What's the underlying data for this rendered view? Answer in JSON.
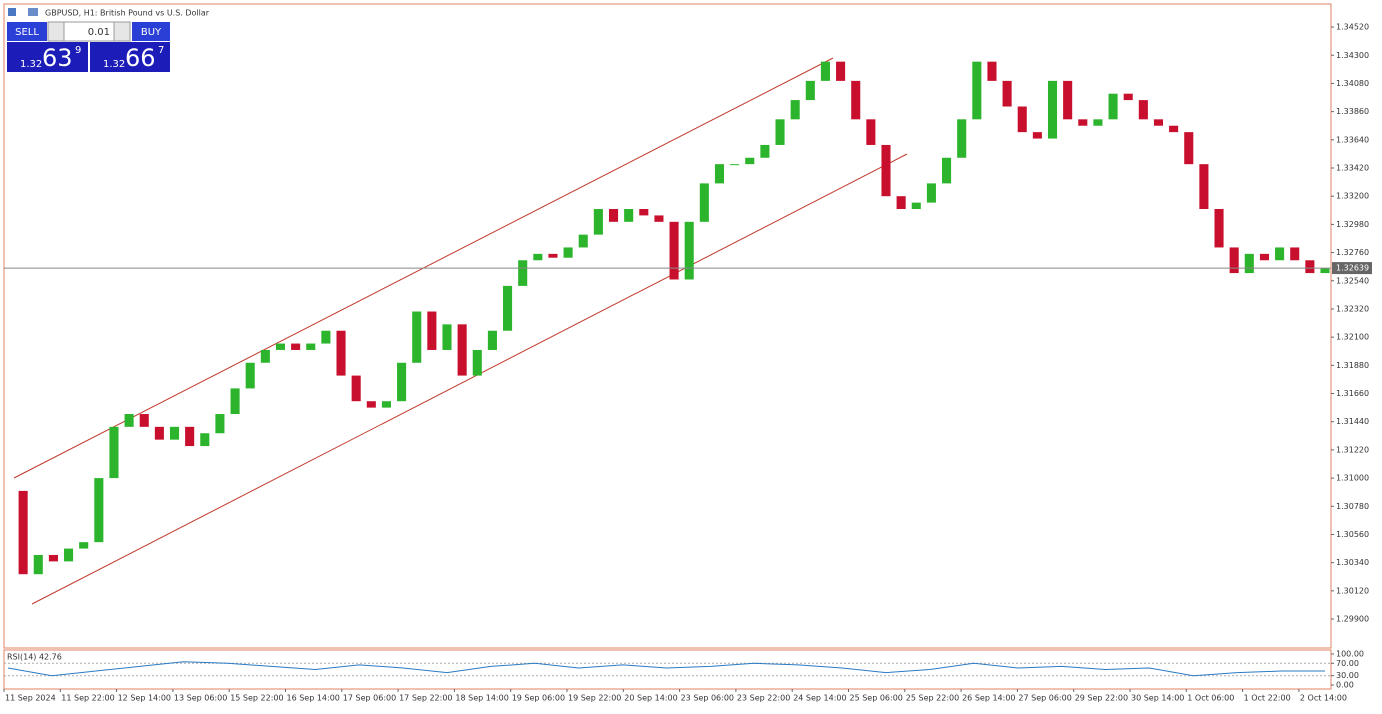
{
  "header": {
    "title": "GBPUSD, H1:  British Pound vs U.S. Dollar"
  },
  "trade_panel": {
    "sell": "SELL",
    "buy": "BUY",
    "lot": "0.01",
    "sell_price": {
      "big": "1.32",
      "pips": "63",
      "point": "9"
    },
    "buy_price": {
      "big": "1.32",
      "pips": "66",
      "point": "7"
    }
  },
  "x_labels": [
    "11 Sep 2024",
    "11 Sep 22:00",
    "12 Sep 14:00",
    "13 Sep 06:00",
    "15 Sep 22:00",
    "16 Sep 14:00",
    "17 Sep 06:00",
    "17 Sep 22:00",
    "18 Sep 14:00",
    "19 Sep 06:00",
    "19 Sep 22:00",
    "20 Sep 14:00",
    "23 Sep 06:00",
    "23 Sep 22:00",
    "24 Sep 14:00",
    "25 Sep 06:00",
    "25 Sep 22:00",
    "26 Sep 14:00",
    "27 Sep 06:00",
    "29 Sep 22:00",
    "30 Sep 14:00",
    "1 Oct 06:00",
    "1 Oct 22:00",
    "2 Oct 14:00"
  ],
  "chart_data": [
    {
      "type": "candlestick",
      "up_color": "#2cb52c",
      "down_color": "#c8102e",
      "values": [
        1.309,
        1.3025,
        1.304,
        1.3035,
        1.3045,
        1.305,
        1.31,
        1.314,
        1.315,
        1.314,
        1.313,
        1.314,
        1.3125,
        1.3135,
        1.315,
        1.317,
        1.319,
        1.32,
        1.3205,
        1.32,
        1.3205,
        1.3215,
        1.318,
        1.316,
        1.3155,
        1.316,
        1.319,
        1.323,
        1.32,
        1.322,
        1.318,
        1.32,
        1.3215,
        1.325,
        1.327,
        1.3275,
        1.3272,
        1.328,
        1.329,
        1.331,
        1.33,
        1.331,
        1.3305,
        1.33,
        1.3255,
        1.33,
        1.333,
        1.3345,
        1.3345,
        1.335,
        1.336,
        1.338,
        1.3395,
        1.341,
        1.3425,
        1.341,
        1.338,
        1.336,
        1.332,
        1.331,
        1.3315,
        1.333,
        1.335,
        1.338,
        1.3425,
        1.341,
        1.339,
        1.337,
        1.3365,
        1.341,
        1.338,
        1.3375,
        1.338,
        1.34,
        1.3395,
        1.338,
        1.3375,
        1.337,
        1.3345,
        1.331,
        1.328,
        1.326,
        1.3275,
        1.327,
        1.328,
        1.327,
        1.326,
        1.3264
      ],
      "current_price": {
        "value": 1.32639,
        "label": "1.32639"
      },
      "ylim": [
        1.29674,
        1.347
      ],
      "yticks": [
        {
          "value": 1.3452,
          "label": "1.34520"
        },
        {
          "value": 1.343,
          "label": "1.34300"
        },
        {
          "value": 1.3408,
          "label": "1.34080"
        },
        {
          "value": 1.3386,
          "label": "1.33860"
        },
        {
          "value": 1.3364,
          "label": "1.33640"
        },
        {
          "value": 1.3342,
          "label": "1.33420"
        },
        {
          "value": 1.332,
          "label": "1.33200"
        },
        {
          "value": 1.3298,
          "label": "1.32980"
        },
        {
          "value": 1.3276,
          "label": "1.32760"
        },
        {
          "value": 1.3254,
          "label": "1.32540"
        },
        {
          "value": 1.3232,
          "label": "1.32320"
        },
        {
          "value": 1.321,
          "label": "1.32100"
        },
        {
          "value": 1.3188,
          "label": "1.31880"
        },
        {
          "value": 1.3166,
          "label": "1.31660"
        },
        {
          "value": 1.3144,
          "label": "1.31440"
        },
        {
          "value": 1.3122,
          "label": "1.31220"
        },
        {
          "value": 1.31,
          "label": "1.31000"
        },
        {
          "value": 1.3078,
          "label": "1.30780"
        },
        {
          "value": 1.3056,
          "label": "1.30560"
        },
        {
          "value": 1.3034,
          "label": "1.30340"
        },
        {
          "value": 1.3012,
          "label": "1.30120"
        },
        {
          "value": 1.299,
          "label": "1.29900"
        }
      ]
    },
    {
      "type": "line",
      "title": "RSI(14) 42.76",
      "color": "#2b7bc4",
      "values": [
        55,
        30,
        45,
        60,
        75,
        70,
        60,
        50,
        65,
        55,
        40,
        60,
        70,
        55,
        65,
        55,
        60,
        70,
        65,
        55,
        40,
        50,
        70,
        55,
        60,
        50,
        55,
        30,
        40,
        45,
        45
      ],
      "ylim": [
        0,
        100
      ],
      "yticks": [
        {
          "value": 100,
          "label": "100.00"
        },
        {
          "value": 70,
          "label": "70.00"
        },
        {
          "value": 30,
          "label": "30.00"
        },
        {
          "value": 0,
          "label": "0.00"
        }
      ]
    }
  ]
}
